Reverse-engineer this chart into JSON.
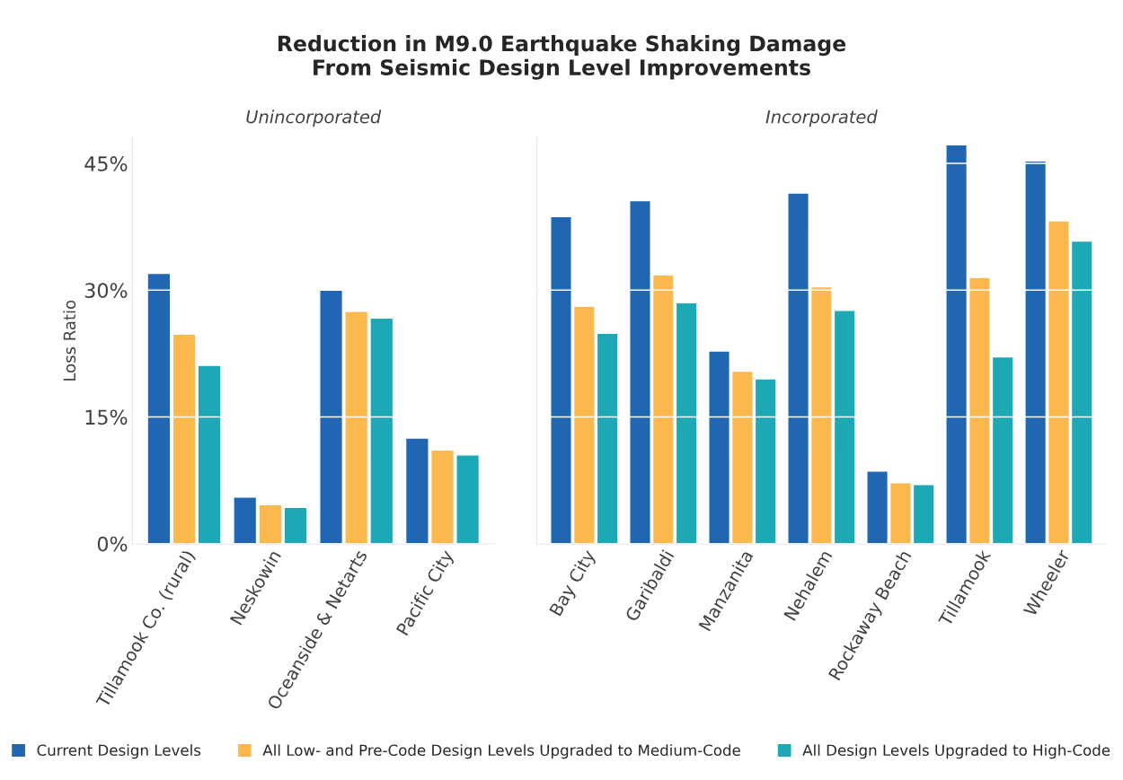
{
  "chart_data": [
    {
      "type": "bar",
      "title": "Reduction in M9.0 Earthquake Shaking Damage\nFrom Seismic Design Level Improvements",
      "subtitle": "Unincorporated",
      "ylabel": "Loss Ratio",
      "categories": [
        "Tillamook Co. (rural)",
        "Neskowin",
        "Oceanside & Netarts",
        "Pacific City"
      ],
      "series": [
        {
          "name": "Current Design Levels",
          "color": "#2166b3",
          "values": [
            32.0,
            5.5,
            30.1,
            12.5
          ]
        },
        {
          "name": "All Low- and Pre-Code Design Levels Upgraded to Medium-Code",
          "color": "#fbb94d",
          "values": [
            24.8,
            4.6,
            27.5,
            11.1
          ]
        },
        {
          "name": "All Design Levels Upgraded to High-Code",
          "color": "#1ca8b5",
          "values": [
            21.1,
            4.3,
            26.7,
            10.5
          ]
        }
      ],
      "ylim": [
        0,
        48
      ],
      "yticks": [
        {
          "value": 0,
          "label": "0%"
        },
        {
          "value": 15,
          "label": "15%"
        },
        {
          "value": 30,
          "label": "30%"
        },
        {
          "value": 45,
          "label": "45%"
        }
      ],
      "grid": "y",
      "legend": "bottom"
    },
    {
      "type": "bar",
      "subtitle": "Incorporated",
      "categories": [
        "Bay City",
        "Garibaldi",
        "Manzanita",
        "Nehalem",
        "Rockaway Beach",
        "Tillamook",
        "Wheeler"
      ],
      "series": [
        {
          "color": "#2166b3",
          "values": [
            38.7,
            40.6,
            22.8,
            41.5,
            8.6,
            47.2,
            45.3
          ]
        },
        {
          "color": "#fbb94d",
          "values": [
            28.1,
            31.8,
            20.4,
            30.4,
            7.2,
            31.5,
            38.2
          ]
        },
        {
          "color": "#1ca8b5",
          "values": [
            24.9,
            28.5,
            19.5,
            27.6,
            7.0,
            22.1,
            35.8
          ]
        }
      ],
      "ylim": [
        0,
        48
      ],
      "yticks": [
        0,
        15,
        30,
        45
      ],
      "grid": "y",
      "tick_labels": "x"
    }
  ]
}
